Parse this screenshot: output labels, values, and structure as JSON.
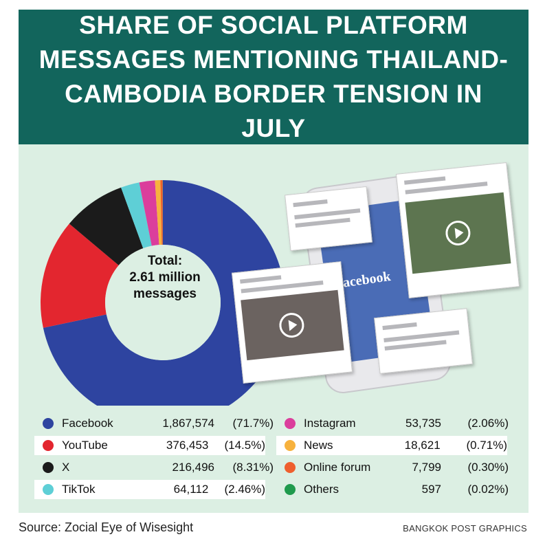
{
  "title": "SHARE OF SOCIAL PLATFORM MESSAGES MENTIONING THAILAND-CAMBODIA BORDER TENSION IN JULY",
  "center_label": [
    "Total:",
    "2.61 million",
    "messages"
  ],
  "phone_brand": "facebook",
  "source": "Source: Zocial Eye of Wisesight",
  "credit": "BANGKOK POST GRAPHICS",
  "colors": {
    "banner": "#12655c",
    "background": "#dcefe3"
  },
  "chart_data": {
    "type": "pie",
    "donut": true,
    "title": "SHARE OF SOCIAL PLATFORM MESSAGES MENTIONING THAILAND-CAMBODIA BORDER TENSION IN JULY",
    "series": [
      {
        "name": "Facebook",
        "value": 1867574,
        "value_label": "1,867,574",
        "percent": 71.7,
        "percent_label": "(71.7%)",
        "color": "#2e44a0"
      },
      {
        "name": "YouTube",
        "value": 376453,
        "value_label": "376,453",
        "percent": 14.5,
        "percent_label": "(14.5%)",
        "color": "#e3262f"
      },
      {
        "name": "X",
        "value": 216496,
        "value_label": "216,496",
        "percent": 8.31,
        "percent_label": "(8.31%)",
        "color": "#1b1b1b"
      },
      {
        "name": "TikTok",
        "value": 64112,
        "value_label": "64,112",
        "percent": 2.46,
        "percent_label": "(2.46%)",
        "color": "#5ecfd6"
      },
      {
        "name": "Instagram",
        "value": 53735,
        "value_label": "53,735",
        "percent": 2.06,
        "percent_label": "(2.06%)",
        "color": "#db3e9c"
      },
      {
        "name": "News",
        "value": 18621,
        "value_label": "18,621",
        "percent": 0.71,
        "percent_label": "(0.71%)",
        "color": "#f7b23e"
      },
      {
        "name": "Online forum",
        "value": 7799,
        "value_label": "7,799",
        "percent": 0.3,
        "percent_label": "(0.30%)",
        "color": "#ef5f2e"
      },
      {
        "name": "Others",
        "value": 597,
        "value_label": "597",
        "percent": 0.02,
        "percent_label": "(0.02%)",
        "color": "#1f9a4d"
      }
    ],
    "legend_placement": "bottom"
  }
}
